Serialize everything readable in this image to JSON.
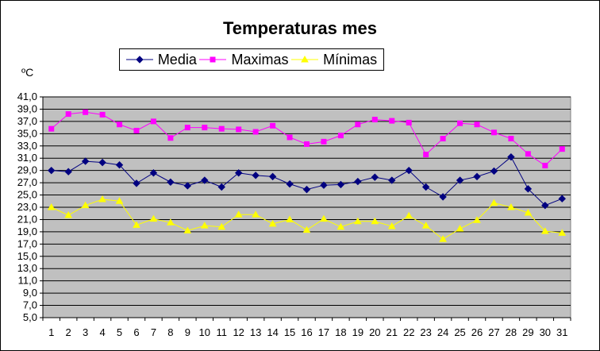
{
  "chart_data": {
    "type": "line",
    "title": "Temperaturas mes",
    "ylabel": "ºC",
    "xlabel": "",
    "ylim": [
      5,
      41
    ],
    "ytick_step": 2,
    "grid": true,
    "legend_position": "top",
    "x": [
      1,
      2,
      3,
      4,
      5,
      6,
      7,
      8,
      9,
      10,
      11,
      12,
      13,
      14,
      15,
      16,
      17,
      18,
      19,
      20,
      21,
      22,
      23,
      24,
      25,
      26,
      27,
      28,
      29,
      30,
      31
    ],
    "series": [
      {
        "name": "Media",
        "color": "#000080",
        "marker": "diamond",
        "values": [
          29.0,
          28.8,
          30.5,
          30.3,
          29.9,
          26.9,
          28.6,
          27.1,
          26.5,
          27.4,
          26.3,
          28.6,
          28.2,
          28.0,
          26.8,
          25.9,
          26.6,
          26.7,
          27.2,
          27.9,
          27.4,
          29.0,
          26.3,
          24.7,
          27.4,
          28.0,
          28.9,
          31.2,
          26.0,
          23.3,
          24.4
        ]
      },
      {
        "name": "Maximas",
        "color": "#ff00ff",
        "marker": "square",
        "values": [
          35.8,
          38.2,
          38.5,
          38.1,
          36.5,
          35.5,
          37.0,
          34.3,
          36.0,
          36.0,
          35.8,
          35.7,
          35.3,
          36.3,
          34.4,
          33.3,
          33.7,
          34.7,
          36.5,
          37.3,
          37.1,
          36.8,
          31.6,
          34.2,
          36.7,
          36.5,
          35.2,
          34.2,
          31.7,
          29.8,
          32.5
        ]
      },
      {
        "name": "Mínimas",
        "color": "#ffff00",
        "marker": "triangle",
        "values": [
          23.0,
          21.7,
          23.3,
          24.3,
          24.0,
          20.1,
          21.1,
          20.5,
          19.2,
          20.0,
          19.8,
          21.8,
          21.8,
          20.3,
          21.0,
          19.3,
          21.1,
          19.8,
          20.7,
          20.7,
          19.9,
          21.6,
          20.0,
          17.8,
          19.5,
          20.9,
          23.7,
          23.0,
          22.1,
          19.1,
          18.8
        ]
      }
    ]
  },
  "colors": {
    "plot_background": "#c0c0c0",
    "gridline": "#000000",
    "axis": "#000000"
  }
}
